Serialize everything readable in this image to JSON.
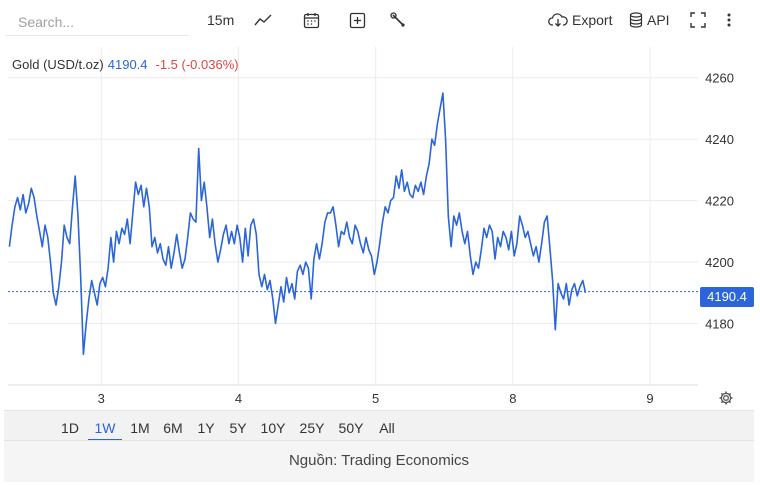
{
  "toolbar": {
    "search_placeholder": "Search...",
    "interval": "15m",
    "export_label": "Export",
    "api_label": "API"
  },
  "legend": {
    "symbol": "Gold (USD/t.oz)",
    "price": "4190.4",
    "change": "-1.5 (-0.036%)",
    "price_color": "#2b65d9",
    "change_color": "#e04545"
  },
  "price_tag": "4190.4",
  "ranges": [
    {
      "label": "1D",
      "active": false
    },
    {
      "label": "1W",
      "active": true
    },
    {
      "label": "1M",
      "active": false
    },
    {
      "label": "6M",
      "active": false
    },
    {
      "label": "1Y",
      "active": false
    },
    {
      "label": "5Y",
      "active": false
    },
    {
      "label": "10Y",
      "active": false
    },
    {
      "label": "25Y",
      "active": false
    },
    {
      "label": "50Y",
      "active": false
    },
    {
      "label": "All",
      "active": false
    }
  ],
  "footer": "Nguồn: Trading Economics",
  "chart_data": {
    "type": "line",
    "title": "",
    "xlabel": "",
    "ylabel": "",
    "line_color": "#2b65d9",
    "last_value": 4190.4,
    "ylim": [
      4160,
      4270
    ],
    "y_ticks": [
      4180,
      4200,
      4220,
      4240,
      4260
    ],
    "x_ticks": [
      {
        "label": "3",
        "x": 1.0
      },
      {
        "label": "4",
        "x": 2.0
      },
      {
        "label": "5",
        "x": 3.0
      },
      {
        "label": "8",
        "x": 4.0
      },
      {
        "label": "9",
        "x": 5.0
      }
    ],
    "xlim": [
      0.32,
      5.35
    ],
    "grid": true,
    "series": [
      {
        "points": [
          [
            0.33,
            4205
          ],
          [
            0.35,
            4212
          ],
          [
            0.37,
            4218
          ],
          [
            0.39,
            4221
          ],
          [
            0.41,
            4217
          ],
          [
            0.43,
            4222
          ],
          [
            0.45,
            4216
          ],
          [
            0.47,
            4219
          ],
          [
            0.49,
            4224
          ],
          [
            0.51,
            4221
          ],
          [
            0.53,
            4215
          ],
          [
            0.55,
            4210
          ],
          [
            0.57,
            4205
          ],
          [
            0.59,
            4212
          ],
          [
            0.61,
            4208
          ],
          [
            0.63,
            4200
          ],
          [
            0.65,
            4190
          ],
          [
            0.67,
            4186
          ],
          [
            0.69,
            4192
          ],
          [
            0.71,
            4200
          ],
          [
            0.73,
            4212
          ],
          [
            0.75,
            4208
          ],
          [
            0.77,
            4206
          ],
          [
            0.79,
            4218
          ],
          [
            0.81,
            4228
          ],
          [
            0.83,
            4215
          ],
          [
            0.85,
            4195
          ],
          [
            0.87,
            4170
          ],
          [
            0.89,
            4180
          ],
          [
            0.91,
            4188
          ],
          [
            0.93,
            4194
          ],
          [
            0.95,
            4190
          ],
          [
            0.97,
            4186
          ],
          [
            0.99,
            4193
          ],
          [
            1.01,
            4195
          ],
          [
            1.03,
            4192
          ],
          [
            1.05,
            4198
          ],
          [
            1.07,
            4208
          ],
          [
            1.09,
            4200
          ],
          [
            1.11,
            4210
          ],
          [
            1.13,
            4206
          ],
          [
            1.15,
            4211
          ],
          [
            1.17,
            4209
          ],
          [
            1.19,
            4214
          ],
          [
            1.21,
            4206
          ],
          [
            1.23,
            4216
          ],
          [
            1.25,
            4226
          ],
          [
            1.27,
            4222
          ],
          [
            1.29,
            4225
          ],
          [
            1.31,
            4218
          ],
          [
            1.33,
            4224
          ],
          [
            1.35,
            4218
          ],
          [
            1.37,
            4205
          ],
          [
            1.39,
            4208
          ],
          [
            1.41,
            4203
          ],
          [
            1.43,
            4206
          ],
          [
            1.45,
            4201
          ],
          [
            1.47,
            4199
          ],
          [
            1.49,
            4205
          ],
          [
            1.51,
            4198
          ],
          [
            1.53,
            4203
          ],
          [
            1.55,
            4209
          ],
          [
            1.57,
            4203
          ],
          [
            1.59,
            4198
          ],
          [
            1.61,
            4201
          ],
          [
            1.63,
            4208
          ],
          [
            1.65,
            4216
          ],
          [
            1.67,
            4214
          ],
          [
            1.69,
            4213
          ],
          [
            1.71,
            4237
          ],
          [
            1.73,
            4220
          ],
          [
            1.75,
            4226
          ],
          [
            1.77,
            4218
          ],
          [
            1.79,
            4208
          ],
          [
            1.81,
            4214
          ],
          [
            1.83,
            4206
          ],
          [
            1.85,
            4200
          ],
          [
            1.87,
            4204
          ],
          [
            1.89,
            4209
          ],
          [
            1.91,
            4212
          ],
          [
            1.93,
            4206
          ],
          [
            1.95,
            4210
          ],
          [
            1.97,
            4206
          ],
          [
            1.99,
            4212
          ],
          [
            2.01,
            4208
          ],
          [
            2.03,
            4200
          ],
          [
            2.05,
            4211
          ],
          [
            2.07,
            4202
          ],
          [
            2.09,
            4212
          ],
          [
            2.11,
            4214
          ],
          [
            2.13,
            4209
          ],
          [
            2.15,
            4196
          ],
          [
            2.17,
            4192
          ],
          [
            2.19,
            4196
          ],
          [
            2.21,
            4191
          ],
          [
            2.23,
            4194
          ],
          [
            2.25,
            4188
          ],
          [
            2.27,
            4180
          ],
          [
            2.29,
            4186
          ],
          [
            2.31,
            4192
          ],
          [
            2.33,
            4187
          ],
          [
            2.35,
            4195
          ],
          [
            2.37,
            4190
          ],
          [
            2.39,
            4193
          ],
          [
            2.41,
            4188
          ],
          [
            2.43,
            4197
          ],
          [
            2.45,
            4199
          ],
          [
            2.47,
            4196
          ],
          [
            2.49,
            4200
          ],
          [
            2.51,
            4198
          ],
          [
            2.53,
            4188
          ],
          [
            2.55,
            4201
          ],
          [
            2.57,
            4206
          ],
          [
            2.59,
            4201
          ],
          [
            2.61,
            4206
          ],
          [
            2.63,
            4213
          ],
          [
            2.65,
            4216
          ],
          [
            2.67,
            4216
          ],
          [
            2.69,
            4218
          ],
          [
            2.71,
            4212
          ],
          [
            2.73,
            4205
          ],
          [
            2.75,
            4210
          ],
          [
            2.77,
            4209
          ],
          [
            2.79,
            4213
          ],
          [
            2.81,
            4208
          ],
          [
            2.83,
            4206
          ],
          [
            2.85,
            4212
          ],
          [
            2.87,
            4210
          ],
          [
            2.89,
            4206
          ],
          [
            2.91,
            4203
          ],
          [
            2.93,
            4208
          ],
          [
            2.95,
            4204
          ],
          [
            2.97,
            4202
          ],
          [
            2.99,
            4196
          ],
          [
            3.01,
            4200
          ],
          [
            3.03,
            4206
          ],
          [
            3.05,
            4213
          ],
          [
            3.07,
            4218
          ],
          [
            3.09,
            4216
          ],
          [
            3.11,
            4220
          ],
          [
            3.13,
            4221
          ],
          [
            3.15,
            4228
          ],
          [
            3.17,
            4224
          ],
          [
            3.19,
            4230
          ],
          [
            3.21,
            4223
          ],
          [
            3.23,
            4226
          ],
          [
            3.25,
            4222
          ],
          [
            3.27,
            4221
          ],
          [
            3.29,
            4225
          ],
          [
            3.31,
            4223
          ],
          [
            3.33,
            4226
          ],
          [
            3.35,
            4222
          ],
          [
            3.37,
            4228
          ],
          [
            3.39,
            4232
          ],
          [
            3.41,
            4240
          ],
          [
            3.43,
            4238
          ],
          [
            3.45,
            4245
          ],
          [
            3.47,
            4250
          ],
          [
            3.49,
            4255
          ],
          [
            3.51,
            4240
          ],
          [
            3.53,
            4215
          ],
          [
            3.55,
            4205
          ],
          [
            3.57,
            4215
          ],
          [
            3.59,
            4212
          ],
          [
            3.61,
            4216
          ],
          [
            3.63,
            4210
          ],
          [
            3.65,
            4206
          ],
          [
            3.67,
            4210
          ],
          [
            3.69,
            4202
          ],
          [
            3.71,
            4196
          ],
          [
            3.73,
            4200
          ],
          [
            3.75,
            4198
          ],
          [
            3.77,
            4204
          ],
          [
            3.79,
            4211
          ],
          [
            3.81,
            4208
          ],
          [
            3.83,
            4212
          ],
          [
            3.85,
            4210
          ],
          [
            3.87,
            4201
          ],
          [
            3.89,
            4208
          ],
          [
            3.91,
            4205
          ],
          [
            3.93,
            4210
          ],
          [
            3.95,
            4208
          ],
          [
            3.97,
            4204
          ],
          [
            3.99,
            4210
          ],
          [
            4.01,
            4202
          ],
          [
            4.03,
            4206
          ],
          [
            4.05,
            4215
          ],
          [
            4.07,
            4212
          ],
          [
            4.09,
            4208
          ],
          [
            4.11,
            4210
          ],
          [
            4.13,
            4206
          ],
          [
            4.15,
            4202
          ],
          [
            4.17,
            4205
          ],
          [
            4.19,
            4200
          ],
          [
            4.21,
            4206
          ],
          [
            4.23,
            4213
          ],
          [
            4.25,
            4215
          ],
          [
            4.27,
            4205
          ],
          [
            4.29,
            4194
          ],
          [
            4.31,
            4178
          ],
          [
            4.33,
            4193
          ],
          [
            4.35,
            4190
          ],
          [
            4.37,
            4188
          ],
          [
            4.39,
            4193
          ],
          [
            4.41,
            4186
          ],
          [
            4.43,
            4191
          ],
          [
            4.45,
            4193
          ],
          [
            4.47,
            4189
          ],
          [
            4.49,
            4192
          ],
          [
            4.51,
            4194
          ],
          [
            4.53,
            4190
          ]
        ]
      }
    ]
  }
}
